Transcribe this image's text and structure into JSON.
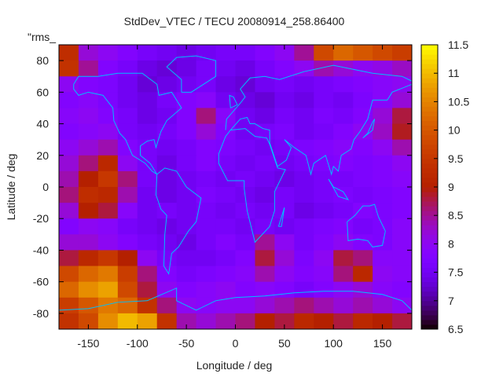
{
  "chart_data": {
    "type": "heatmap",
    "title": "StdDev_VTEC / TECU 20080914_258.86400",
    "annotation": "\"rms_",
    "xlabel": "Longitude / deg",
    "ylabel": "Latitude / deg",
    "xlim": [
      -180,
      180
    ],
    "ylim": [
      -90,
      90
    ],
    "xticks": [
      -150,
      -100,
      -50,
      0,
      50,
      100,
      150
    ],
    "yticks": [
      -80,
      -60,
      -40,
      -20,
      0,
      20,
      40,
      60,
      80
    ],
    "colorbar": {
      "range": [
        6.5,
        11.5
      ],
      "ticks": [
        "6.5",
        "7",
        "7.5",
        "8",
        "8.5",
        "9",
        "9.5",
        "10",
        "10.5",
        "11",
        "11.5"
      ],
      "colormap": "black-purple-red-orange-yellow"
    },
    "grid": false,
    "overlay": "coastlines",
    "overlay_color": "#00bfff",
    "lon_centers": [
      -170,
      -150,
      -130,
      -110,
      -90,
      -70,
      -50,
      -30,
      -10,
      10,
      30,
      50,
      70,
      90,
      110,
      130,
      150,
      170
    ],
    "lat_centers": [
      85,
      75,
      65,
      55,
      45,
      35,
      25,
      15,
      5,
      -5,
      -15,
      -25,
      -35,
      -45,
      -55,
      -65,
      -75,
      -85
    ],
    "values": [
      [
        9.3,
        8.2,
        8.0,
        7.8,
        7.6,
        7.5,
        7.4,
        7.5,
        7.6,
        7.6,
        7.8,
        8.0,
        8.5,
        9.8,
        10.2,
        10.0,
        9.8,
        9.6
      ],
      [
        9.4,
        8.5,
        7.8,
        7.6,
        7.4,
        7.3,
        7.4,
        7.6,
        7.5,
        7.4,
        7.6,
        7.8,
        8.0,
        8.4,
        8.2,
        8.0,
        8.1,
        8.3
      ],
      [
        8.0,
        7.8,
        7.7,
        7.5,
        7.3,
        7.4,
        7.5,
        7.6,
        7.4,
        7.3,
        7.5,
        7.6,
        7.5,
        7.6,
        7.7,
        7.8,
        7.9,
        8.0
      ],
      [
        7.8,
        7.9,
        7.7,
        7.5,
        7.4,
        7.6,
        7.8,
        7.9,
        7.5,
        7.4,
        7.3,
        7.5,
        7.4,
        7.6,
        7.5,
        7.7,
        7.9,
        8.2
      ],
      [
        7.9,
        8.0,
        7.8,
        7.6,
        7.4,
        7.5,
        7.8,
        8.6,
        7.9,
        7.5,
        7.4,
        7.6,
        7.5,
        7.7,
        7.6,
        7.8,
        8.2,
        8.8
      ],
      [
        7.8,
        7.9,
        8.0,
        7.6,
        7.5,
        7.6,
        7.8,
        8.2,
        7.8,
        7.5,
        7.6,
        7.7,
        7.5,
        7.6,
        7.8,
        8.0,
        8.3,
        8.9
      ],
      [
        8.0,
        8.2,
        8.4,
        7.8,
        7.6,
        7.5,
        7.6,
        7.8,
        7.7,
        7.6,
        7.5,
        7.6,
        7.7,
        7.8,
        7.9,
        7.8,
        8.0,
        8.4
      ],
      [
        8.2,
        8.6,
        9.2,
        8.0,
        7.6,
        7.4,
        7.6,
        7.8,
        7.6,
        7.5,
        7.6,
        7.5,
        7.6,
        7.7,
        7.8,
        7.7,
        7.8,
        8.0
      ],
      [
        8.4,
        9.0,
        9.5,
        8.6,
        7.6,
        7.4,
        7.5,
        7.6,
        7.5,
        7.6,
        7.5,
        7.4,
        7.5,
        7.6,
        7.6,
        7.7,
        7.8,
        7.9
      ],
      [
        8.6,
        9.3,
        9.2,
        8.4,
        7.5,
        7.4,
        7.5,
        7.7,
        7.6,
        7.5,
        7.4,
        7.6,
        7.5,
        7.6,
        7.7,
        7.6,
        7.7,
        7.8
      ],
      [
        8.2,
        9.0,
        8.8,
        7.9,
        7.5,
        7.6,
        7.5,
        7.6,
        7.5,
        7.6,
        7.5,
        7.6,
        7.4,
        7.5,
        7.6,
        7.8,
        7.7,
        7.8
      ],
      [
        7.8,
        8.0,
        7.9,
        7.6,
        7.5,
        7.4,
        7.5,
        7.6,
        7.6,
        7.5,
        7.6,
        7.5,
        7.6,
        7.7,
        7.8,
        7.6,
        7.7,
        7.9
      ],
      [
        8.2,
        8.2,
        8.0,
        7.8,
        7.6,
        7.5,
        7.4,
        7.6,
        7.8,
        7.6,
        8.5,
        8.0,
        7.6,
        7.8,
        8.0,
        7.8,
        7.7,
        7.9
      ],
      [
        8.8,
        9.2,
        9.5,
        9.0,
        8.0,
        7.6,
        7.5,
        7.5,
        7.6,
        7.8,
        8.8,
        8.2,
        7.7,
        8.0,
        8.8,
        8.6,
        7.9,
        7.9
      ],
      [
        9.8,
        10.2,
        10.4,
        9.6,
        8.6,
        7.8,
        7.6,
        7.7,
        7.8,
        7.9,
        8.4,
        8.0,
        7.8,
        7.9,
        8.6,
        9.2,
        8.0,
        7.9
      ],
      [
        10.2,
        10.6,
        10.8,
        9.8,
        8.8,
        8.0,
        7.8,
        7.9,
        8.0,
        7.8,
        7.9,
        7.8,
        7.6,
        7.8,
        8.0,
        8.2,
        7.9,
        7.8
      ],
      [
        9.6,
        10.0,
        10.4,
        10.2,
        9.4,
        8.6,
        8.0,
        7.9,
        8.0,
        8.0,
        8.2,
        8.4,
        8.6,
        8.4,
        8.2,
        8.4,
        8.2,
        8.0
      ],
      [
        9.4,
        9.8,
        10.6,
        11.0,
        10.8,
        9.4,
        8.4,
        8.2,
        8.4,
        8.6,
        9.0,
        8.8,
        9.2,
        9.0,
        8.8,
        9.2,
        9.0,
        8.8
      ]
    ]
  }
}
